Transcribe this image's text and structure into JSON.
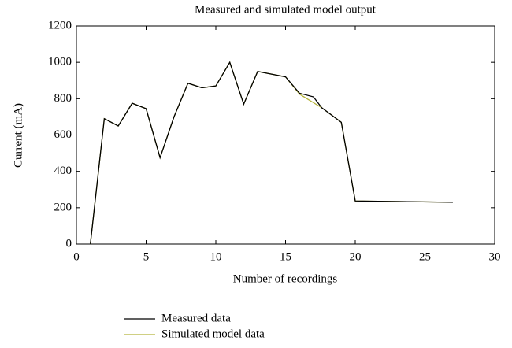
{
  "chart_data": {
    "type": "line",
    "title": "Measured and simulated model output",
    "xlabel": "Number of recordings",
    "ylabel": "Current (mA)",
    "xlim": [
      0,
      30
    ],
    "xticks": [
      0,
      5,
      10,
      15,
      20,
      25,
      30
    ],
    "ylim": [
      0,
      1200
    ],
    "yticks": [
      0,
      200,
      400,
      600,
      800,
      1000,
      1200
    ],
    "series": [
      {
        "name": "Measured data",
        "color": "#000000",
        "x": [
          1,
          2,
          3,
          4,
          5,
          6,
          7,
          8,
          9,
          10,
          11,
          12,
          13,
          15,
          16,
          17,
          17.6,
          19,
          20,
          27
        ],
        "values": [
          0,
          690,
          650,
          775,
          745,
          475,
          700,
          885,
          860,
          870,
          1000,
          770,
          950,
          920,
          830,
          810,
          750,
          670,
          237,
          230
        ]
      },
      {
        "name": "Simulated model data",
        "color": "#b5b33a",
        "x": [
          1,
          2,
          3,
          4,
          5,
          6,
          7,
          8,
          9,
          10,
          11,
          12,
          13,
          15,
          16,
          17.6,
          19,
          20,
          27
        ],
        "values": [
          0,
          690,
          650,
          775,
          745,
          475,
          700,
          885,
          860,
          870,
          1000,
          770,
          950,
          920,
          825,
          750,
          670,
          237,
          230
        ]
      }
    ]
  }
}
